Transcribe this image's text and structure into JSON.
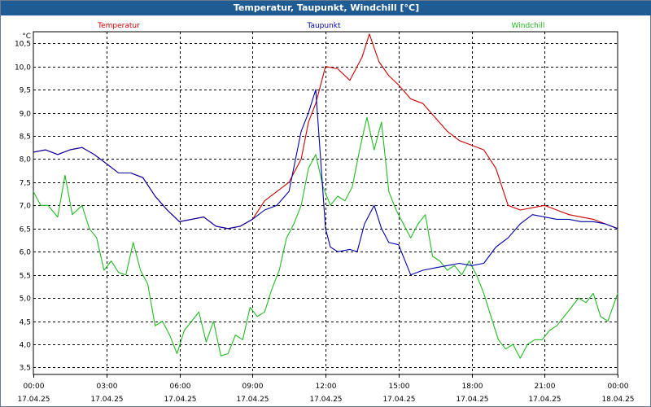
{
  "window": {
    "title": "Temperatur, Taupunkt, Windchill [°C]"
  },
  "colors": {
    "temperatur": "#cc0000",
    "taupunkt": "#0000aa",
    "windchill": "#22bb22",
    "title_bg": "#1f5c93",
    "grid": "#000000"
  },
  "chart_data": {
    "type": "line",
    "title": "Temperatur, Taupunkt, Windchill [°C]",
    "ylabel": "°C",
    "ylim": [
      3.5,
      10.5
    ],
    "xlim": [
      0,
      24
    ],
    "grid": true,
    "legend_position": "top",
    "yticks": [
      "3,5",
      "4,0",
      "4,5",
      "5,0",
      "5,5",
      "6,0",
      "6,5",
      "7,0",
      "7,5",
      "8,0",
      "8,5",
      "9,0",
      "9,5",
      "10,0",
      "10,5"
    ],
    "xticks": [
      {
        "time": "00:00",
        "date": "17.04.25"
      },
      {
        "time": "03:00",
        "date": "17.04.25"
      },
      {
        "time": "06:00",
        "date": "17.04.25"
      },
      {
        "time": "09:00",
        "date": "17.04.25"
      },
      {
        "time": "12:00",
        "date": "17.04.25"
      },
      {
        "time": "15:00",
        "date": "17.04.25"
      },
      {
        "time": "18:00",
        "date": "17.04.25"
      },
      {
        "time": "21:00",
        "date": "17.04.25"
      },
      {
        "time": "00:00",
        "date": "18.04.25"
      }
    ],
    "series": [
      {
        "name": "Temperatur",
        "x": [
          0,
          0.5,
          1,
          1.5,
          2,
          2.5,
          3,
          3.5,
          4,
          4.5,
          5,
          5.5,
          6,
          6.5,
          7,
          7.5,
          8,
          8.5,
          9,
          9.5,
          10,
          10.5,
          11,
          11.3,
          11.6,
          12,
          12.5,
          13,
          13.5,
          13.8,
          14.2,
          14.6,
          15,
          15.5,
          16,
          16.5,
          17,
          17.5,
          18,
          18.5,
          19,
          19.5,
          20,
          20.5,
          21,
          21.5,
          22,
          22.5,
          23,
          23.5,
          24
        ],
        "y": [
          8.15,
          8.2,
          8.1,
          8.2,
          8.25,
          8.1,
          7.9,
          7.7,
          7.7,
          7.6,
          7.2,
          6.9,
          6.65,
          6.7,
          6.75,
          6.55,
          6.5,
          6.55,
          6.7,
          7.1,
          7.3,
          7.5,
          8.0,
          8.8,
          9.2,
          10.0,
          9.95,
          9.7,
          10.2,
          10.7,
          10.1,
          9.8,
          9.6,
          9.3,
          9.2,
          8.9,
          8.6,
          8.4,
          8.3,
          8.2,
          7.8,
          7.0,
          6.9,
          6.95,
          7.0,
          6.9,
          6.8,
          6.75,
          6.7,
          6.6,
          6.5
        ]
      },
      {
        "name": "Taupunkt",
        "x": [
          0,
          0.5,
          1,
          1.5,
          2,
          2.5,
          3,
          3.5,
          4,
          4.5,
          5,
          5.5,
          6,
          6.5,
          7,
          7.5,
          8,
          8.5,
          9,
          9.5,
          10,
          10.5,
          11,
          11.3,
          11.6,
          11.8,
          12,
          12.2,
          12.5,
          13,
          13.3,
          13.6,
          14,
          14.3,
          14.6,
          15,
          15.5,
          16,
          16.5,
          17,
          17.5,
          18,
          18.5,
          19,
          19.5,
          20,
          20.5,
          21,
          21.5,
          22,
          22.5,
          23,
          23.5,
          24
        ],
        "y": [
          8.15,
          8.2,
          8.1,
          8.2,
          8.25,
          8.1,
          7.9,
          7.7,
          7.7,
          7.6,
          7.2,
          6.9,
          6.65,
          6.7,
          6.75,
          6.55,
          6.5,
          6.55,
          6.7,
          6.9,
          7.0,
          7.3,
          8.6,
          9.0,
          9.5,
          8.0,
          6.5,
          6.1,
          6.0,
          6.05,
          6.0,
          6.6,
          7.0,
          6.5,
          6.2,
          6.15,
          5.5,
          5.6,
          5.65,
          5.7,
          5.75,
          5.7,
          5.75,
          6.1,
          6.3,
          6.6,
          6.8,
          6.75,
          6.7,
          6.7,
          6.65,
          6.65,
          6.6,
          6.5
        ]
      },
      {
        "name": "Windchill",
        "x": [
          0,
          0.3,
          0.6,
          1,
          1.3,
          1.6,
          2,
          2.3,
          2.6,
          2.9,
          3.2,
          3.5,
          3.8,
          4.1,
          4.4,
          4.7,
          5,
          5.3,
          5.6,
          5.9,
          6.2,
          6.5,
          6.8,
          7.1,
          7.4,
          7.7,
          8,
          8.3,
          8.6,
          8.9,
          9.2,
          9.5,
          9.8,
          10.1,
          10.4,
          10.7,
          11,
          11.3,
          11.6,
          11.9,
          12.2,
          12.5,
          12.8,
          13.1,
          13.4,
          13.7,
          14,
          14.3,
          14.6,
          14.9,
          15.2,
          15.5,
          15.8,
          16.1,
          16.4,
          16.7,
          17,
          17.3,
          17.6,
          17.9,
          18.2,
          18.5,
          18.8,
          19.1,
          19.4,
          19.7,
          20,
          20.3,
          20.6,
          20.9,
          21.2,
          21.5,
          21.8,
          22.1,
          22.4,
          22.7,
          23,
          23.3,
          23.6,
          24
        ],
        "y": [
          7.3,
          7.0,
          7.0,
          6.75,
          7.65,
          6.8,
          7.0,
          6.5,
          6.3,
          5.6,
          5.8,
          5.55,
          5.5,
          6.2,
          5.6,
          5.3,
          4.4,
          4.5,
          4.2,
          3.8,
          4.3,
          4.5,
          4.7,
          4.05,
          4.5,
          3.75,
          3.8,
          4.2,
          4.1,
          4.8,
          4.6,
          4.7,
          5.2,
          5.6,
          6.3,
          6.6,
          7.0,
          7.8,
          8.1,
          7.4,
          7.0,
          7.2,
          7.1,
          7.4,
          8.2,
          8.9,
          8.2,
          8.8,
          7.3,
          6.9,
          6.6,
          6.3,
          6.6,
          6.8,
          5.9,
          5.8,
          5.6,
          5.7,
          5.5,
          5.8,
          5.5,
          5.1,
          4.6,
          4.1,
          3.9,
          4.0,
          3.7,
          4.0,
          4.1,
          4.1,
          4.3,
          4.4,
          4.6,
          4.8,
          5.0,
          4.9,
          5.1,
          4.6,
          4.5,
          5.1
        ]
      }
    ]
  }
}
